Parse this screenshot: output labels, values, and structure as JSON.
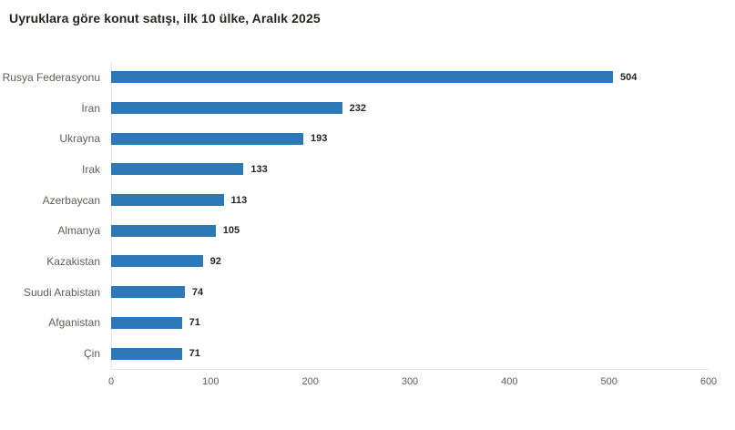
{
  "title": "Uyruklara göre konut satışı, ilk 10 ülke, Aralık 2025",
  "colors": {
    "bar": "#2d79b8",
    "title_text": "#252423",
    "category_text": "#605e5c",
    "value_text": "#252423",
    "axis_line": "#e6e6e6",
    "background": "#ffffff"
  },
  "chart_data": {
    "type": "bar",
    "orientation": "horizontal",
    "title": "Uyruklara göre konut satışı, ilk 10 ülke, Aralık 2025",
    "categories": [
      "Rusya Federasyonu",
      "İran",
      "Ukrayna",
      "Irak",
      "Azerbaycan",
      "Almanya",
      "Kazakistan",
      "Suudi Arabistan",
      "Afganistan",
      "Çin"
    ],
    "values": [
      504,
      232,
      193,
      133,
      113,
      105,
      92,
      74,
      71,
      71
    ],
    "data_labels": [
      "504",
      "232",
      "193",
      "133",
      "113",
      "105",
      "92",
      "74",
      "71",
      "71"
    ],
    "xlabel": "",
    "ylabel": "",
    "xlim": [
      0,
      600
    ],
    "x_ticks": [
      "0",
      "100",
      "200",
      "300",
      "400",
      "500",
      "600"
    ],
    "grid": false,
    "legend": "none",
    "value_labels_shown": true
  }
}
